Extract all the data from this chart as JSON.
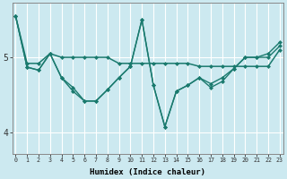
{
  "xlabel": "Humidex (Indice chaleur)",
  "background_color": "#cce9f0",
  "line_color": "#1a7a6e",
  "grid_color": "#ffffff",
  "x_values": [
    0,
    1,
    2,
    3,
    4,
    5,
    6,
    7,
    8,
    9,
    10,
    11,
    12,
    13,
    14,
    15,
    16,
    17,
    18,
    19,
    20,
    21,
    22,
    23
  ],
  "series1": [
    5.55,
    4.92,
    4.92,
    5.05,
    5.0,
    5.0,
    5.0,
    5.0,
    5.0,
    4.92,
    4.92,
    4.92,
    4.92,
    4.92,
    4.92,
    4.92,
    4.88,
    4.88,
    4.88,
    4.88,
    4.88,
    4.88,
    4.88,
    5.1
  ],
  "series2": [
    5.55,
    4.87,
    4.83,
    5.05,
    4.73,
    4.55,
    4.42,
    4.42,
    4.57,
    4.73,
    4.88,
    5.5,
    4.63,
    4.08,
    4.55,
    4.63,
    4.73,
    4.6,
    4.68,
    4.85,
    5.0,
    5.0,
    5.0,
    5.15
  ],
  "series3": [
    5.55,
    4.87,
    4.83,
    5.05,
    4.73,
    4.6,
    4.42,
    4.42,
    4.57,
    4.73,
    4.88,
    5.5,
    4.63,
    4.08,
    4.55,
    4.63,
    4.73,
    4.65,
    4.73,
    4.85,
    5.0,
    5.0,
    5.05,
    5.2
  ],
  "ylim": [
    3.72,
    5.72
  ],
  "yticks": [
    4,
    5
  ],
  "xlim": [
    -0.3,
    23.3
  ]
}
